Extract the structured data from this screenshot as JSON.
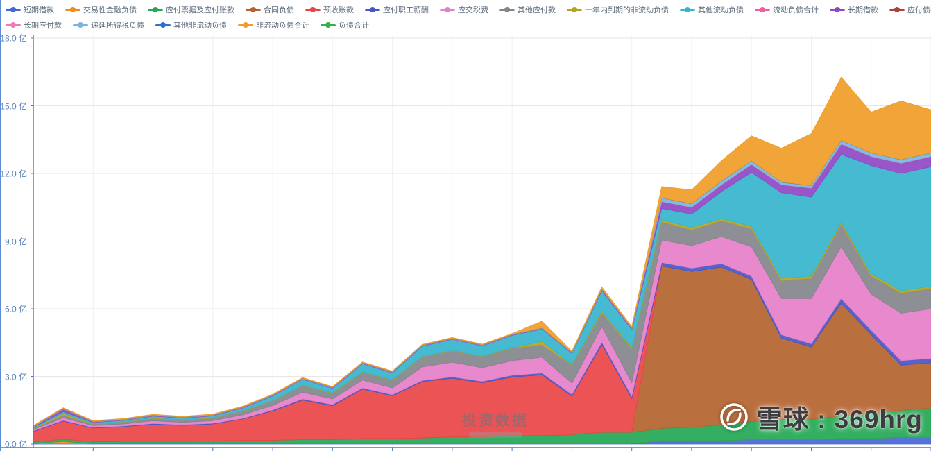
{
  "page": {
    "background": "#ffffff"
  },
  "legend": {
    "row_break": 13
  },
  "axes": {
    "axis_color": "#4a74c4",
    "grid_color": "#e6e6ec",
    "vgrid_color": "#f1f1f5",
    "y_ticks": [
      {
        "label": "0.0 亿",
        "value": 0
      },
      {
        "label": "3.0 亿",
        "value": 3
      },
      {
        "label": "6.0 亿",
        "value": 6
      },
      {
        "label": "9.0 亿",
        "value": 9
      },
      {
        "label": "12.0 亿",
        "value": 12
      },
      {
        "label": "15.0 亿",
        "value": 15
      },
      {
        "label": "18.0 亿",
        "value": 18
      }
    ]
  },
  "watermarks": {
    "center_text": "投资数据",
    "site_badge": "雪球 : 369hrg"
  },
  "chart_data": {
    "type": "area",
    "stacked": true,
    "x_count": 31,
    "ylim": [
      0,
      18
    ],
    "y_unit": "亿",
    "series": [
      {
        "name": "短期借款",
        "color": "#4568d4",
        "values": [
          0.02,
          0.02,
          0.02,
          0.02,
          0.02,
          0.02,
          0.02,
          0.02,
          0.02,
          0.02,
          0.02,
          0.02,
          0.02,
          0.02,
          0.02,
          0.02,
          0.02,
          0.02,
          0.02,
          0.02,
          0.02,
          0.15,
          0.15,
          0.15,
          0.2,
          0.2,
          0.2,
          0.25,
          0.25,
          0.3,
          0.3
        ]
      },
      {
        "name": "交易性金融负债",
        "color": "#f08c1b",
        "values": [
          0,
          0.1,
          0,
          0,
          0,
          0,
          0,
          0,
          0,
          0,
          0,
          0,
          0,
          0,
          0,
          0,
          0,
          0,
          0,
          0,
          0,
          0,
          0,
          0,
          0,
          0,
          0,
          0,
          0,
          0,
          0
        ]
      },
      {
        "name": "应付票据及应付账款",
        "color": "#23a854",
        "values": [
          0.08,
          0.1,
          0.09,
          0.1,
          0.11,
          0.11,
          0.12,
          0.14,
          0.15,
          0.18,
          0.18,
          0.22,
          0.22,
          0.25,
          0.3,
          0.3,
          0.35,
          0.35,
          0.4,
          0.5,
          0.5,
          0.55,
          0.6,
          0.7,
          0.8,
          0.9,
          0.9,
          1.0,
          1.1,
          1.2,
          1.3
        ]
      },
      {
        "name": "合同负债",
        "color": "#b4632f",
        "values": [
          0,
          0,
          0,
          0,
          0,
          0,
          0,
          0,
          0,
          0,
          0,
          0,
          0,
          0,
          0,
          0,
          0,
          0,
          0,
          0,
          0,
          7.2,
          6.9,
          7.0,
          6.3,
          3.6,
          3.2,
          5.0,
          3.5,
          2.0,
          2.0
        ]
      },
      {
        "name": "预收账款",
        "color": "#e94446",
        "values": [
          0.45,
          0.8,
          0.6,
          0.65,
          0.75,
          0.7,
          0.75,
          0.95,
          1.3,
          1.75,
          1.5,
          2.2,
          1.9,
          2.5,
          2.6,
          2.4,
          2.6,
          2.7,
          1.7,
          3.9,
          1.5,
          0,
          0,
          0,
          0,
          0,
          0,
          0,
          0,
          0,
          0
        ]
      },
      {
        "name": "应付职工薪酬",
        "color": "#4656c6",
        "values": [
          0.03,
          0.03,
          0.03,
          0.03,
          0.03,
          0.03,
          0.03,
          0.03,
          0.04,
          0.05,
          0.05,
          0.05,
          0.05,
          0.05,
          0.06,
          0.06,
          0.08,
          0.08,
          0.08,
          0.1,
          0.1,
          0.15,
          0.15,
          0.15,
          0.15,
          0.15,
          0.15,
          0.2,
          0.2,
          0.2,
          0.2
        ]
      },
      {
        "name": "应交税费",
        "color": "#e57fc8",
        "values": [
          0.06,
          0.12,
          0.08,
          0.09,
          0.12,
          0.1,
          0.12,
          0.16,
          0.2,
          0.3,
          0.25,
          0.35,
          0.3,
          0.6,
          0.65,
          0.6,
          0.65,
          0.7,
          0.5,
          0.7,
          0.6,
          1.0,
          1.0,
          1.2,
          1.3,
          1.6,
          2.0,
          2.3,
          1.6,
          2.1,
          2.2
        ]
      },
      {
        "name": "其他应付款",
        "color": "#84848c",
        "values": [
          0.05,
          0.1,
          0.07,
          0.08,
          0.11,
          0.1,
          0.11,
          0.16,
          0.2,
          0.3,
          0.25,
          0.35,
          0.35,
          0.45,
          0.5,
          0.5,
          0.55,
          0.55,
          0.8,
          0.6,
          1.5,
          0.8,
          0.7,
          0.7,
          0.8,
          0.8,
          0.9,
          1.0,
          0.8,
          0.9,
          0.9
        ]
      },
      {
        "name": "一年内到期的非流动负债",
        "color": "#b3a51f",
        "values": [
          0.02,
          0.08,
          0.02,
          0.02,
          0.02,
          0.02,
          0.02,
          0.02,
          0.02,
          0.02,
          0.02,
          0.02,
          0.02,
          0.02,
          0.02,
          0.02,
          0.02,
          0.15,
          0.02,
          0.08,
          0.05,
          0.1,
          0.1,
          0.1,
          0.1,
          0.1,
          0.1,
          0.1,
          0.1,
          0.1,
          0.1
        ]
      },
      {
        "name": "其他流动负债",
        "color": "#36b4cc",
        "values": [
          0.03,
          0.08,
          0.05,
          0.06,
          0.08,
          0.07,
          0.08,
          0.12,
          0.2,
          0.25,
          0.2,
          0.35,
          0.3,
          0.45,
          0.5,
          0.45,
          0.55,
          0.55,
          0.5,
          0.9,
          0.8,
          0.5,
          0.6,
          1.2,
          2.4,
          3.8,
          3.5,
          3.0,
          4.8,
          5.2,
          5.3
        ]
      },
      {
        "name": "流动负债合计",
        "color": "#ef5f9f",
        "render": false,
        "values": [
          0.74,
          1.43,
          0.96,
          1.05,
          1.24,
          1.15,
          1.25,
          1.6,
          2.13,
          2.87,
          2.47,
          3.56,
          3.16,
          4.34,
          4.65,
          4.35,
          4.82,
          5.1,
          4.02,
          6.8,
          5.07,
          10.45,
          10.2,
          11.2,
          12.05,
          11.15,
          10.95,
          12.85,
          12.35,
          12.0,
          12.3
        ]
      },
      {
        "name": "长期借款",
        "color": "#8f48c4",
        "values": [
          0.02,
          0.12,
          0.02,
          0.02,
          0.02,
          0.02,
          0.02,
          0.02,
          0.02,
          0.02,
          0.02,
          0.02,
          0.02,
          0.02,
          0.02,
          0.02,
          0.02,
          0.02,
          0.02,
          0.05,
          0.05,
          0.3,
          0.3,
          0.3,
          0.35,
          0.35,
          0.4,
          0.45,
          0.4,
          0.45,
          0.45
        ]
      },
      {
        "name": "应付债券",
        "color": "#ab403c",
        "values": [
          0,
          0,
          0,
          0,
          0,
          0,
          0,
          0,
          0,
          0,
          0,
          0,
          0,
          0,
          0,
          0,
          0,
          0,
          0,
          0,
          0,
          0,
          0,
          0,
          0,
          0,
          0,
          0,
          0,
          0,
          0
        ]
      },
      {
        "name": "长期应付款",
        "color": "#ee7cb7",
        "values": [
          0.01,
          0.01,
          0.01,
          0.01,
          0.01,
          0.01,
          0.01,
          0.01,
          0.01,
          0.01,
          0.01,
          0.01,
          0.01,
          0.01,
          0.01,
          0.01,
          0.01,
          0.01,
          0.01,
          0.01,
          0.01,
          0.01,
          0.01,
          0.01,
          0.01,
          0.01,
          0.01,
          0.01,
          0.01,
          0.01,
          0.01
        ]
      },
      {
        "name": "递延所得税负债",
        "color": "#7db4de",
        "values": [
          0.01,
          0.01,
          0.01,
          0.01,
          0.01,
          0.01,
          0.01,
          0.01,
          0.01,
          0.01,
          0.01,
          0.01,
          0.01,
          0.01,
          0.01,
          0.01,
          0.01,
          0.01,
          0.01,
          0.02,
          0.02,
          0.15,
          0.15,
          0.15,
          0.15,
          0.1,
          0.1,
          0.15,
          0.15,
          0.15,
          0.15
        ]
      },
      {
        "name": "其他非流动负债",
        "color": "#2e72cf",
        "values": [
          0.01,
          0.01,
          0.01,
          0.01,
          0.01,
          0.01,
          0.01,
          0.01,
          0.01,
          0.01,
          0.01,
          0.01,
          0.01,
          0.01,
          0.01,
          0.01,
          0.01,
          0.01,
          0.01,
          0.01,
          0.01,
          0.01,
          0.01,
          0.01,
          0.01,
          0.01,
          0.01,
          0.01,
          0.01,
          0.01,
          0.01
        ]
      },
      {
        "name": "非流动负债合计",
        "color": "#f09d27",
        "values": [
          0.03,
          0.03,
          0.03,
          0.03,
          0.03,
          0.03,
          0.03,
          0.03,
          0.03,
          0.03,
          0.03,
          0.03,
          0.03,
          0.03,
          0.03,
          0.03,
          0.03,
          0.3,
          0.05,
          0.08,
          0.05,
          0.5,
          0.6,
          0.9,
          1.1,
          1.5,
          2.3,
          2.8,
          1.8,
          2.6,
          1.9
        ]
      },
      {
        "name": "负债合计",
        "color": "#2fb34c",
        "render": false,
        "values": [
          0.82,
          1.61,
          1.04,
          1.13,
          1.32,
          1.23,
          1.33,
          1.68,
          2.21,
          2.95,
          2.55,
          3.64,
          3.24,
          4.42,
          4.73,
          4.43,
          4.9,
          5.45,
          4.12,
          6.99,
          5.21,
          11.42,
          11.27,
          12.57,
          13.67,
          13.12,
          13.77,
          16.27,
          14.72,
          15.22,
          14.82
        ]
      }
    ]
  }
}
